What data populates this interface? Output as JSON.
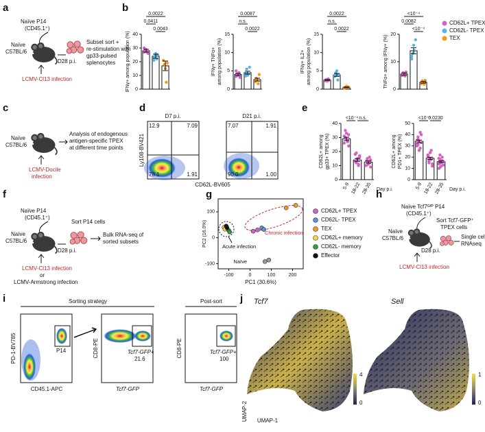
{
  "letters": [
    "a",
    "b",
    "c",
    "d",
    "e",
    "f",
    "g",
    "h",
    "i",
    "j"
  ],
  "panels": {
    "a": {
      "donor": [
        "Naïve P14",
        "(CD45.1⁺)"
      ],
      "host": [
        "Naïve",
        "C57BL/6"
      ],
      "day": "D28 p.i.",
      "step": [
        "Subset sort +",
        "re-stimulation with",
        "gp33-pulsed",
        "splenocytes"
      ],
      "infection": "LCMV-Cl13 infection"
    },
    "c": {
      "host": [
        "Naïve",
        "C57BL/6"
      ],
      "step": [
        "Analysis of endogenous",
        "antigen-specific TPEX",
        "at different time points"
      ],
      "infection": [
        "LCMV-Docile",
        "infection"
      ]
    },
    "d": {
      "titles": [
        "D7 p.i.",
        "D21 p.i."
      ],
      "ylabel": "Ly108-BV421",
      "xlabel": "CD62L-BV605",
      "quadrants": [
        [
          "12.9",
          "7.09",
          "78.1",
          "1.91"
        ],
        [
          "7.07",
          "1.91",
          "90.0",
          "1.00"
        ]
      ]
    },
    "f": {
      "donor": [
        "Naïve P14",
        "(CD45.1⁺)"
      ],
      "host": [
        "Naïve",
        "C57BL/6"
      ],
      "day": "D28 p.i.",
      "sort": "Sort P14 cells",
      "step": [
        "Bulk RNA-seq of",
        "sorted subsets"
      ],
      "infection": "LCMV-Cl13 infection",
      "or": "or",
      "alt": "LCMV-Armstrong infection"
    },
    "h": {
      "donor": [
        "Naïve Tcf7ᴳᶠᴾ P14",
        "(CD45.1⁺)"
      ],
      "host": [
        "Naïve",
        "C57BL/6"
      ],
      "day": "D28 p.i.",
      "sort": [
        "Sort Tcf7-GFP⁺",
        "TPEX cells"
      ],
      "step": [
        "Single cell",
        "RNAseq"
      ],
      "infection": "LCMV-Cl13 infection"
    },
    "i": {
      "headers": [
        "Sorting strategy",
        "Post-sort"
      ],
      "plot1": {
        "ylabel": "PD-1-BV785",
        "xlabel": "CD45.1-APC",
        "gate": "P14"
      },
      "plot2": {
        "ylabel": "CD8-PE",
        "xlabel": "Tcf7-GFP",
        "gate": "Tcf7-GFP+",
        "pct": "21.6"
      },
      "plot3": {
        "ylabel": "CD8-PE",
        "xlabel": "Tcf7-GFP",
        "gate": "Tcf7-GFP+",
        "pct": "100"
      }
    },
    "j": {
      "titles": [
        "Tcf7",
        "Sell"
      ],
      "ylabel": "UMAP-2",
      "xlabel": "UMAP-1",
      "scale1": [
        "4",
        "0"
      ],
      "scale2": [
        "1",
        "0"
      ]
    }
  },
  "legend_b": [
    {
      "name": "CD62L+ TPEX",
      "color": "#d462c4"
    },
    {
      "name": "CD62L- TPEX",
      "color": "#5ab4e0"
    },
    {
      "name": "TEX",
      "color": "#f39a1f"
    }
  ],
  "chart_data": [
    {
      "type": "bar",
      "ylabel": [
        "IFNγ+ among population (%)"
      ],
      "categories": [
        null,
        null,
        null
      ],
      "values": [
        28,
        24,
        17
      ],
      "errors": [
        1,
        1.5,
        3.5
      ],
      "colors": [
        "#d462c4",
        "#5ab4e0",
        "#f39a1f"
      ],
      "points": [
        [
          27,
          28,
          29,
          27,
          26,
          30
        ],
        [
          23,
          24,
          26,
          22,
          25,
          21
        ],
        [
          21,
          18,
          15,
          5,
          19
        ]
      ],
      "ylim": [
        0,
        40
      ],
      "yticks": [
        0,
        10,
        20,
        30,
        40
      ],
      "annotations": [
        "0.0022",
        "0.0411",
        "0.0043"
      ]
    },
    {
      "type": "bar",
      "ylabel": [
        "IFNγ+ TNFα+",
        "among population (%)"
      ],
      "categories": [
        null,
        null,
        null
      ],
      "values": [
        4,
        4.5,
        2.6
      ],
      "errors": [
        0.3,
        0.4,
        0.4
      ],
      "colors": [
        "#d462c4",
        "#5ab4e0",
        "#f39a1f"
      ],
      "points": [
        [
          3.5,
          4.2,
          3.8,
          4.5,
          3.2,
          5
        ],
        [
          4,
          5.5,
          3.8,
          4.2,
          6,
          3.6
        ],
        [
          2,
          3,
          2.5,
          1.5,
          4
        ]
      ],
      "ylim": [
        0,
        15
      ],
      "yticks": [
        0,
        5,
        10,
        15
      ],
      "annotations": [
        "0.0087",
        "n.s.",
        "0.0022"
      ]
    },
    {
      "type": "bar",
      "ylabel": [
        "IFNγ+ IL2+",
        "among population (%)"
      ],
      "categories": [
        null,
        null,
        null
      ],
      "values": [
        2.5,
        3.9,
        0.5
      ],
      "errors": [
        0.1,
        0.4,
        0.1
      ],
      "colors": [
        "#d462c4",
        "#5ab4e0",
        "#f39a1f"
      ],
      "points": [
        [
          2.4,
          2.6,
          2.2,
          2.8,
          2.5,
          2.3
        ],
        [
          3.5,
          4.5,
          5,
          2.5,
          4,
          3.8
        ],
        [
          0.3,
          0.5,
          0.8,
          0.4,
          0.6
        ]
      ],
      "ylim": [
        0,
        15
      ],
      "yticks": [
        0,
        5,
        10,
        15
      ],
      "annotations": [
        "0.0022",
        "n.s.",
        "0.0022"
      ]
    },
    {
      "type": "bar",
      "ylabel": [
        "TNFα+ among IFNγ+ (%)"
      ],
      "categories": [
        null,
        null,
        null
      ],
      "values": [
        5.5,
        14,
        2.5
      ],
      "errors": [
        0.4,
        1.1,
        0.3
      ],
      "colors": [
        "#d462c4",
        "#5ab4e0",
        "#f39a1f"
      ],
      "points": [
        [
          5,
          6,
          5.5,
          4.8,
          6.2,
          5
        ],
        [
          11,
          13,
          16,
          14,
          18,
          12
        ],
        [
          2,
          3,
          2.5,
          1.8,
          3.2
        ]
      ],
      "ylim": [
        0,
        20
      ],
      "yticks": [
        0,
        10,
        20
      ],
      "annotations": [
        "<10⁻⁴",
        "0.0082",
        "<10⁻⁴"
      ]
    },
    {
      "type": "bar",
      "ylabel": [
        "CD62L+ among",
        "gp33+ TPEX (%)"
      ],
      "xlabel": "Day p.i.",
      "categories": [
        "5-9",
        "18-22",
        "28-35"
      ],
      "values": [
        29,
        14,
        12.5
      ],
      "errors": [
        1.2,
        1,
        0.8
      ],
      "colors": [
        "#d462c4",
        "#d462c4",
        "#d462c4"
      ],
      "points": [
        [
          26,
          30,
          33,
          28,
          24,
          31,
          35,
          29,
          27,
          32
        ],
        [
          18,
          12,
          15,
          10,
          16,
          13,
          19,
          14,
          11,
          17
        ],
        [
          10,
          14,
          12,
          16,
          9,
          13,
          15,
          11,
          12,
          14
        ]
      ],
      "ylim": [
        0,
        40
      ],
      "yticks": [
        0,
        10,
        20,
        30,
        40
      ],
      "annotations": [
        "<10⁻⁴",
        "n.s."
      ]
    },
    {
      "type": "bar",
      "ylabel": [
        "CD62L+ among",
        "PD1+ TPEX (%)"
      ],
      "xlabel": "Day p.i.",
      "categories": [
        "5-9",
        "18-22",
        "28-35"
      ],
      "values": [
        34,
        19,
        16
      ],
      "errors": [
        1.2,
        1,
        0.8
      ],
      "colors": [
        "#d462c4",
        "#d462c4",
        "#d462c4"
      ],
      "points": [
        [
          30,
          38,
          34,
          28,
          40,
          32,
          36,
          26,
          42,
          33,
          35,
          31
        ],
        [
          20,
          15,
          24,
          18,
          12,
          22,
          17,
          19,
          26,
          14,
          21,
          16
        ],
        [
          14,
          18,
          12,
          20,
          16,
          10,
          22,
          15,
          17,
          13,
          19,
          11
        ]
      ],
      "ylim": [
        0,
        50
      ],
      "yticks": [
        0,
        10,
        20,
        30,
        40,
        50
      ],
      "annotations": [
        "<10⁻⁴",
        "0.0230"
      ]
    },
    {
      "type": "scatter",
      "xlabel": "PC1 (30.6%)",
      "ylabel": "PC2 (16.0%)",
      "xlim": [
        -150,
        250
      ],
      "ylim": [
        -120,
        150
      ],
      "xticks": [
        -100,
        0,
        100,
        200
      ],
      "yticks": [
        -100,
        0,
        100
      ],
      "series": [
        {
          "name": "CD62L+ TPEX",
          "color": "#d462c4",
          "x": [
            15,
            35
          ],
          "y": [
            25,
            30
          ]
        },
        {
          "name": "CD62L- TPEX",
          "color": "#5b8fd6",
          "x": [
            55,
            65
          ],
          "y": [
            38,
            32
          ]
        },
        {
          "name": "TEX",
          "color": "#f39a1f",
          "x": [
            170,
            215
          ],
          "y": [
            115,
            125
          ]
        },
        {
          "name": "CD62L+ memory",
          "color": "#f5d547",
          "x": [
            -122,
            -118
          ],
          "y": [
            40,
            33
          ]
        },
        {
          "name": "CD62L- memory",
          "color": "#2e9e3e",
          "x": [
            -100,
            -96
          ],
          "y": [
            28,
            22
          ]
        },
        {
          "name": "Effector",
          "color": "#111111",
          "x": [
            -112,
            -108
          ],
          "y": [
            45,
            38
          ]
        },
        {
          "color": "#9a9a9a",
          "x": [
            70,
            88
          ],
          "y": [
            -92,
            -86
          ]
        }
      ],
      "annotations": [
        "Acute infection",
        "Chronic infection",
        "Naïve"
      ]
    }
  ]
}
